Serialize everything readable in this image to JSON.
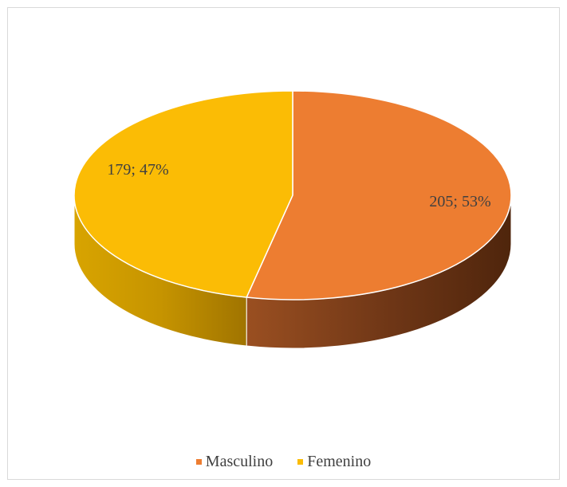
{
  "chart_data": {
    "type": "pie",
    "style": "3d",
    "title": "",
    "categories": [
      "Masculino",
      "Femenino"
    ],
    "values": [
      205,
      179
    ],
    "percent": [
      53,
      47
    ],
    "data_labels": [
      "205; 53%",
      "179; 47%"
    ],
    "colors": [
      "#ed7d31",
      "#fbbc05"
    ],
    "legend_position": "bottom"
  },
  "legend": {
    "items": [
      {
        "label": "Masculino",
        "color": "#ed7d31"
      },
      {
        "label": "Femenino",
        "color": "#fbbc05"
      }
    ]
  }
}
